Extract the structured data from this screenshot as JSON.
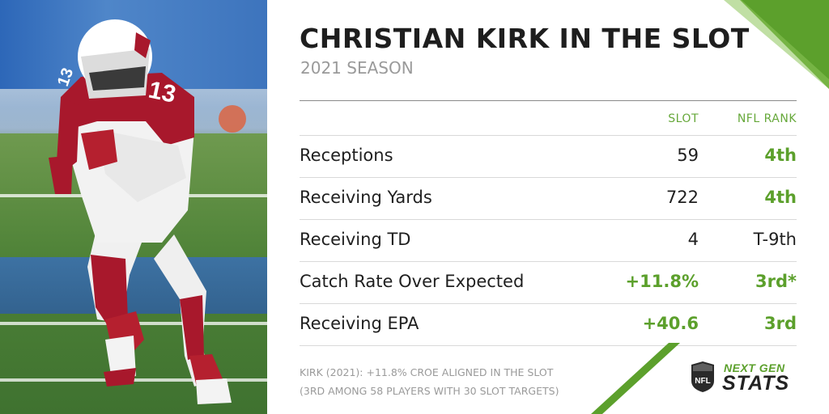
{
  "header": {
    "title": "CHRISTIAN KIRK IN THE SLOT",
    "subtitle": "2021 SEASON"
  },
  "table": {
    "columns": [
      "SLOT",
      "NFL RANK"
    ],
    "rows": [
      {
        "label": "Receptions",
        "slot": "59",
        "rank": "4th",
        "slot_highlight": false,
        "rank_highlight": true
      },
      {
        "label": "Receiving Yards",
        "slot": "722",
        "rank": "4th",
        "slot_highlight": false,
        "rank_highlight": true
      },
      {
        "label": "Receiving TD",
        "slot": "4",
        "rank": "T-9th",
        "slot_highlight": false,
        "rank_highlight": false
      },
      {
        "label": "Catch Rate Over Expected",
        "slot": "+11.8%",
        "rank": "3rd*",
        "slot_highlight": true,
        "rank_highlight": true
      },
      {
        "label": "Receiving EPA",
        "slot": "+40.6",
        "rank": "3rd",
        "slot_highlight": true,
        "rank_highlight": true
      }
    ]
  },
  "footnote": {
    "line1": "KIRK (2021): +11.8% CROE ALIGNED IN THE SLOT",
    "line2": "(3RD AMONG 58 PLAYERS WITH 30 SLOT TARGETS)"
  },
  "logo": {
    "shield_text": "NFL",
    "next": "NEXT GEN",
    "stats": "STATS"
  },
  "photo": {
    "jersey_number": "13"
  },
  "colors": {
    "accent_green": "#5ca02c",
    "title": "#1e1e1e",
    "muted": "#9a9a9a",
    "jersey_red": "#a8182c"
  }
}
